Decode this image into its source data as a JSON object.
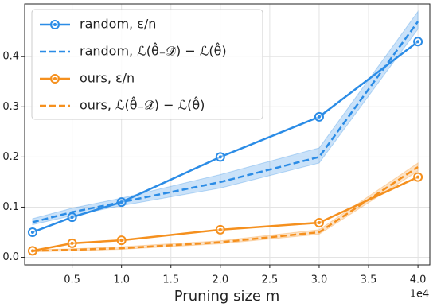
{
  "chart_data": {
    "type": "line",
    "x_label": "Pruning size m",
    "x_offset_label": "1e4",
    "x": [
      1000,
      5000,
      10000,
      20000,
      30000,
      40000
    ],
    "xlim": [
      200,
      41200
    ],
    "xticks": [
      {
        "value": 5000,
        "label": "0.5"
      },
      {
        "value": 10000,
        "label": "1.0"
      },
      {
        "value": 15000,
        "label": "1.5"
      },
      {
        "value": 20000,
        "label": "2.0"
      },
      {
        "value": 25000,
        "label": "2.5"
      },
      {
        "value": 30000,
        "label": "3.0"
      },
      {
        "value": 35000,
        "label": "3.5"
      },
      {
        "value": 40000,
        "label": "4.0"
      }
    ],
    "ylim": [
      -0.015,
      0.505
    ],
    "yticks": [
      {
        "value": 0,
        "label": "0.0"
      },
      0.1,
      0.2,
      0.3,
      0.4
    ],
    "grid": true,
    "legend": "upper left",
    "series": [
      {
        "name": "random, ε/n",
        "color": "#2b8ce6",
        "style": "solid",
        "marker": true,
        "values": [
          0.05,
          0.08,
          0.11,
          0.2,
          0.28,
          0.43
        ]
      },
      {
        "name": "random, ℒ(θ̂₋𝒟̂) − ℒ(θ̂)",
        "color": "#2b8ce6",
        "style": "dashed",
        "marker": false,
        "values": [
          0.07,
          0.09,
          0.11,
          0.15,
          0.2,
          0.47
        ],
        "lower": [
          0.065,
          0.083,
          0.103,
          0.138,
          0.188,
          0.455
        ],
        "upper": [
          0.077,
          0.098,
          0.118,
          0.165,
          0.218,
          0.49
        ]
      },
      {
        "name": "ours, ε/n",
        "color": "#f5901e",
        "style": "solid",
        "marker": true,
        "values": [
          0.013,
          0.028,
          0.034,
          0.055,
          0.069,
          0.16
        ]
      },
      {
        "name": "ours, ℒ(θ̂₋𝒟̂) − ℒ(θ̂)",
        "color": "#f5901e",
        "style": "dashed",
        "marker": false,
        "values": [
          0.013,
          0.015,
          0.018,
          0.03,
          0.05,
          0.18
        ],
        "lower": [
          0.011,
          0.013,
          0.016,
          0.027,
          0.046,
          0.172
        ],
        "upper": [
          0.015,
          0.017,
          0.021,
          0.033,
          0.055,
          0.188
        ]
      }
    ]
  }
}
